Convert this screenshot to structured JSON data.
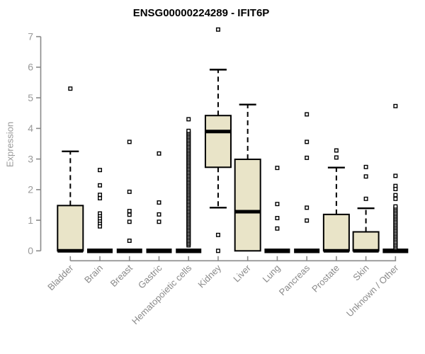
{
  "title": "ENSG00000224289 - IFIT6P",
  "colors": {
    "box_fill": "#e9e4c8",
    "box_stroke": "#000000",
    "whisker": "#000000",
    "outlier_stroke": "#000000",
    "outlier_fill": "#ffffff",
    "axis": "#8a8a8a",
    "tick_text": "#999999",
    "xlabel_text": "#8a8a8a",
    "title_text": "#000000"
  },
  "y_axis": {
    "label": "Expression",
    "min": 0,
    "max": 7,
    "ticks": [
      0,
      1,
      2,
      3,
      4,
      5,
      6,
      7
    ]
  },
  "chart_data": {
    "type": "box",
    "title": "ENSG00000224289 - IFIT6P",
    "xlabel": "",
    "ylabel": "Expression",
    "ylim": [
      0,
      7
    ],
    "grid": false,
    "legend": false,
    "categories": [
      "Bladder",
      "Brain",
      "Breast",
      "Gastric",
      "Hematopoietic cells",
      "Kidney",
      "Liver",
      "Lung",
      "Pancreas",
      "Prostate",
      "Skin",
      "Unknown / Other"
    ],
    "series": [
      {
        "name": "Bladder",
        "q1": 0,
        "median": 0,
        "q3": 1.48,
        "whisker_low": 0,
        "whisker_high": 3.25,
        "outliers": [
          5.3
        ]
      },
      {
        "name": "Brain",
        "q1": 0,
        "median": 0,
        "q3": 0,
        "whisker_low": 0,
        "whisker_high": 0,
        "outliers": [
          2.64,
          2.14,
          1.83,
          1.72,
          1.22,
          1.13,
          1.05,
          0.96,
          0.88,
          0.8
        ]
      },
      {
        "name": "Breast",
        "q1": 0,
        "median": 0,
        "q3": 0,
        "whisker_low": 0,
        "whisker_high": 0,
        "outliers": [
          3.56,
          1.93,
          1.3,
          1.18,
          0.95,
          0.33
        ]
      },
      {
        "name": "Gastric",
        "q1": 0,
        "median": 0,
        "q3": 0,
        "whisker_low": 0,
        "whisker_high": 0,
        "outliers": [
          3.18,
          1.58,
          1.19,
          0.95
        ]
      },
      {
        "name": "Hematopoietic cells",
        "q1": 0,
        "median": 0,
        "q3": 0,
        "whisker_low": 0,
        "whisker_high": 0,
        "outliers": [
          4.3
        ],
        "outlier_stack": {
          "min": 0.18,
          "max": 3.92,
          "count": 80
        }
      },
      {
        "name": "Kidney",
        "q1": 2.73,
        "median": 3.9,
        "q3": 4.42,
        "whisker_low": 1.41,
        "whisker_high": 5.92,
        "outliers": [
          7.23,
          0.52,
          0.0
        ]
      },
      {
        "name": "Liver",
        "q1": 0,
        "median": 1.28,
        "q3": 2.99,
        "whisker_low": 0,
        "whisker_high": 4.78,
        "outliers": []
      },
      {
        "name": "Lung",
        "q1": 0,
        "median": 0,
        "q3": 0,
        "whisker_low": 0,
        "whisker_high": 0,
        "outliers": [
          2.71,
          1.53,
          1.07,
          0.73
        ]
      },
      {
        "name": "Pancreas",
        "q1": 0,
        "median": 0,
        "q3": 0,
        "whisker_low": 0,
        "whisker_high": 0,
        "outliers": [
          4.46,
          3.56,
          3.04,
          1.41,
          0.99
        ]
      },
      {
        "name": "Prostate",
        "q1": 0,
        "median": 0,
        "q3": 1.19,
        "whisker_low": 0,
        "whisker_high": 2.72,
        "outliers": [
          3.28,
          3.05
        ]
      },
      {
        "name": "Skin",
        "q1": 0,
        "median": 0,
        "q3": 0.62,
        "whisker_low": 0,
        "whisker_high": 1.39,
        "outliers": [
          2.74,
          2.43,
          1.7
        ]
      },
      {
        "name": "Unknown / Other",
        "q1": 0,
        "median": 0,
        "q3": 0,
        "whisker_low": 0,
        "whisker_high": 0,
        "outliers": [
          4.73,
          2.45,
          2.12,
          2.02,
          1.82,
          1.7
        ],
        "outlier_stack": {
          "min": 0.1,
          "max": 1.45,
          "count": 28
        }
      }
    ]
  }
}
